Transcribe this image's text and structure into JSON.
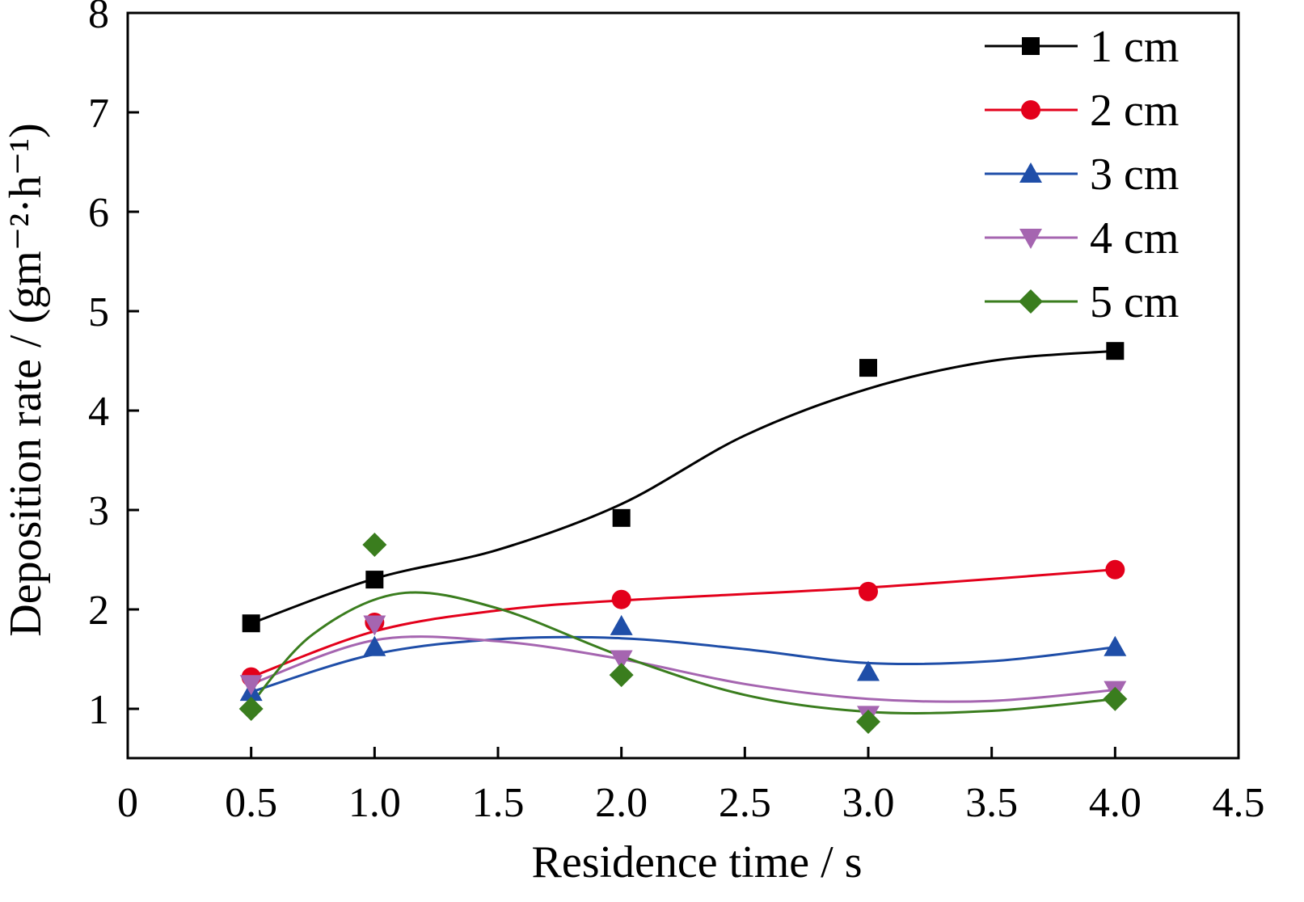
{
  "chart_data": {
    "type": "line",
    "title": "",
    "xlabel": "Residence time / s",
    "ylabel": "Deposition rate / (gm⁻²·h⁻¹)",
    "xlim": [
      0,
      4.5
    ],
    "ylim": [
      0.5,
      8
    ],
    "x_ticks": [
      "0",
      "0.5",
      "1.0",
      "1.5",
      "2.0",
      "2.5",
      "3.0",
      "3.5",
      "4.0",
      "4.5"
    ],
    "y_ticks": [
      "1",
      "2",
      "3",
      "4",
      "5",
      "6",
      "7",
      "8"
    ],
    "grid": false,
    "legend_position": "top-right",
    "curve": "smooth spline fit",
    "x": [
      0.5,
      1.0,
      2.0,
      3.0,
      4.0
    ],
    "series": [
      {
        "name": "1 cm",
        "color": "#000000",
        "marker": "square",
        "values": [
          1.86,
          2.3,
          2.92,
          4.43,
          4.6
        ],
        "fit": [
          [
            0.5,
            1.86
          ],
          [
            1.0,
            2.31
          ],
          [
            1.5,
            2.6
          ],
          [
            2.0,
            3.06
          ],
          [
            2.5,
            3.75
          ],
          [
            3.0,
            4.22
          ],
          [
            3.5,
            4.5
          ],
          [
            4.0,
            4.6
          ]
        ]
      },
      {
        "name": "2 cm",
        "color": "#e3001b",
        "marker": "circle",
        "values": [
          1.32,
          1.87,
          2.1,
          2.18,
          2.4
        ],
        "fit": [
          [
            0.5,
            1.32
          ],
          [
            1.0,
            1.78
          ],
          [
            1.5,
            1.99
          ],
          [
            2.0,
            2.09
          ],
          [
            3.0,
            2.22
          ],
          [
            4.0,
            2.4
          ]
        ]
      },
      {
        "name": "3 cm",
        "color": "#1f4ea8",
        "marker": "triangle-up",
        "values": [
          1.17,
          1.62,
          1.83,
          1.37,
          1.62
        ],
        "fit": [
          [
            0.5,
            1.17
          ],
          [
            1.0,
            1.55
          ],
          [
            1.5,
            1.7
          ],
          [
            2.0,
            1.71
          ],
          [
            2.5,
            1.6
          ],
          [
            3.0,
            1.46
          ],
          [
            3.5,
            1.48
          ],
          [
            4.0,
            1.62
          ]
        ]
      },
      {
        "name": "4 cm",
        "color": "#a565b0",
        "marker": "triangle-down",
        "values": [
          1.25,
          1.85,
          1.5,
          0.94,
          1.19
        ],
        "fit": [
          [
            0.5,
            1.25
          ],
          [
            1.0,
            1.69
          ],
          [
            1.5,
            1.68
          ],
          [
            2.0,
            1.5
          ],
          [
            2.5,
            1.25
          ],
          [
            3.0,
            1.1
          ],
          [
            3.5,
            1.08
          ],
          [
            4.0,
            1.19
          ]
        ]
      },
      {
        "name": "5 cm",
        "color": "#3a7d1e",
        "marker": "diamond",
        "values": [
          1.0,
          2.65,
          1.34,
          0.87,
          1.1
        ],
        "fit": [
          [
            0.5,
            1.05
          ],
          [
            0.75,
            1.75
          ],
          [
            1.1,
            2.16
          ],
          [
            1.5,
            2.01
          ],
          [
            2.0,
            1.53
          ],
          [
            2.5,
            1.14
          ],
          [
            3.0,
            0.97
          ],
          [
            3.5,
            0.98
          ],
          [
            4.0,
            1.1
          ]
        ]
      }
    ]
  }
}
